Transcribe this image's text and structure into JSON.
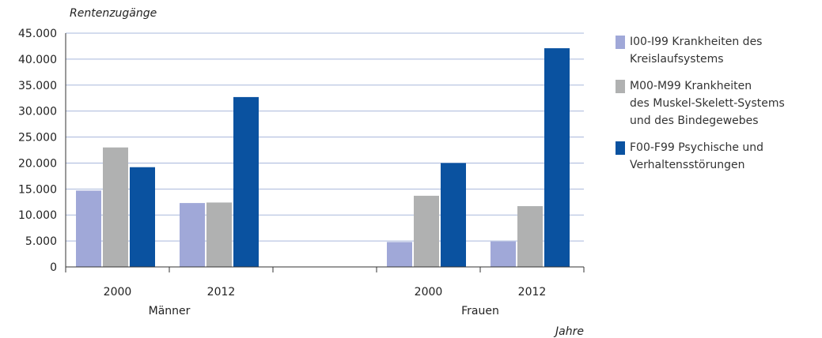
{
  "chart_data": {
    "type": "bar",
    "ylabel": "Rentenzugänge",
    "xlabel": "Jahre",
    "ylim": [
      0,
      45000
    ],
    "yticks": [
      0,
      5000,
      10000,
      15000,
      20000,
      25000,
      30000,
      35000,
      40000,
      45000
    ],
    "ytick_labels": [
      "0",
      "5.000",
      "10.000",
      "15.000",
      "20.000",
      "25.000",
      "30.000",
      "35.000",
      "40.000",
      "45.000"
    ],
    "grid": true,
    "legend_position": "right",
    "groups": [
      {
        "label": "Männer",
        "categories": [
          "2000",
          "2012"
        ]
      },
      {
        "label": "Frauen",
        "categories": [
          "2000",
          "2012"
        ]
      }
    ],
    "categories": [
      "Männer 2000",
      "Männer 2012",
      "Frauen 2000",
      "Frauen 2012"
    ],
    "series": [
      {
        "name": "I00-I99 Krankheiten des Kreislaufsystems",
        "legend_text": "I00-I99 Krankheiten des\nKreislaufsystems",
        "color": "#a0a8d8",
        "values": [
          14700,
          12300,
          4800,
          4900
        ]
      },
      {
        "name": "M00-M99 Krankheiten des Muskel-Skelett-Systems und des Bindegewebes",
        "legend_text": "M00-M99 Krankheiten\ndes Muskel-Skelett-Systems\nund des Bindegewebes",
        "color": "#b0b1b1",
        "values": [
          23000,
          12400,
          13700,
          11700
        ]
      },
      {
        "name": "F00-F99 Psychische und Verhaltensstörungen",
        "legend_text": "F00-F99 Psychische und\nVerhaltensstörungen",
        "color": "#0a52a0",
        "values": [
          19200,
          32700,
          20000,
          42100
        ]
      }
    ]
  }
}
